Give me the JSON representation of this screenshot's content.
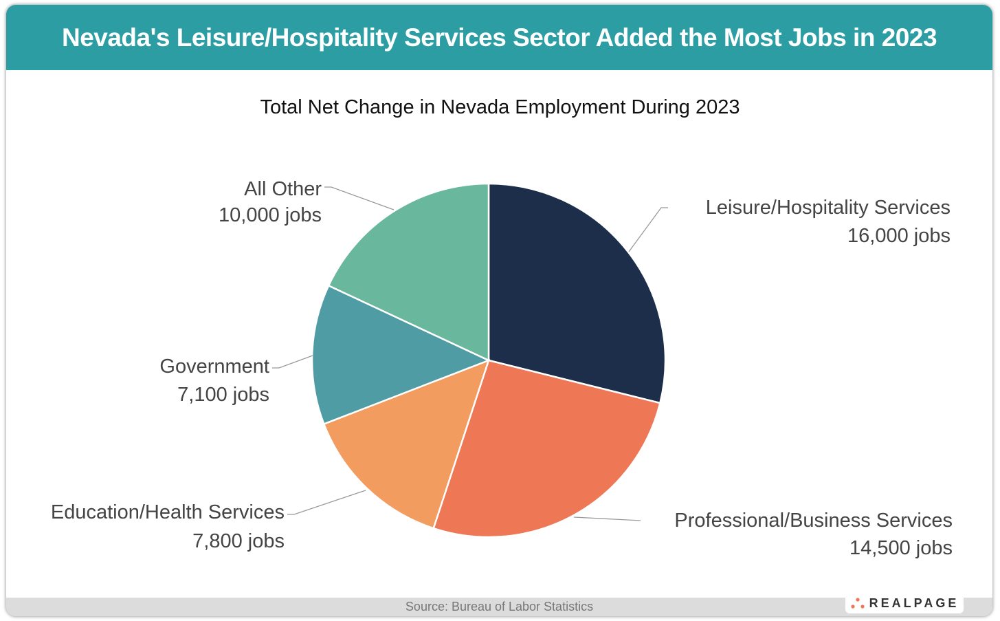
{
  "header": {
    "title": "Nevada's Leisure/Hospitality Services Sector Added the Most Jobs in 2023"
  },
  "footer": {
    "source": "Source: Bureau of Labor Statistics",
    "logo": "REALPAGE"
  },
  "chart_data": {
    "type": "pie",
    "title": "Total Net Change in Nevada Employment During 2023",
    "start": "12 o'clock, clockwise",
    "slices": [
      {
        "name": "Leisure/Hospitality Services",
        "value": 16000,
        "label": "16,000 jobs",
        "color": "#1C2E4A"
      },
      {
        "name": "Professional/Business Services",
        "value": 14500,
        "label": "14,500 jobs",
        "color": "#EE7755"
      },
      {
        "name": "Education/Health Services",
        "value": 7800,
        "label": "7,800 jobs",
        "color": "#F39C5F"
      },
      {
        "name": "Government",
        "value": 7100,
        "label": "7,100 jobs",
        "color": "#4F9CA5"
      },
      {
        "name": "All Other",
        "value": 10000,
        "label": "10,000 jobs",
        "color": "#69B79D"
      }
    ]
  },
  "colors": {
    "header": "#2C9DA3",
    "logo_dots": "#EE7755"
  }
}
